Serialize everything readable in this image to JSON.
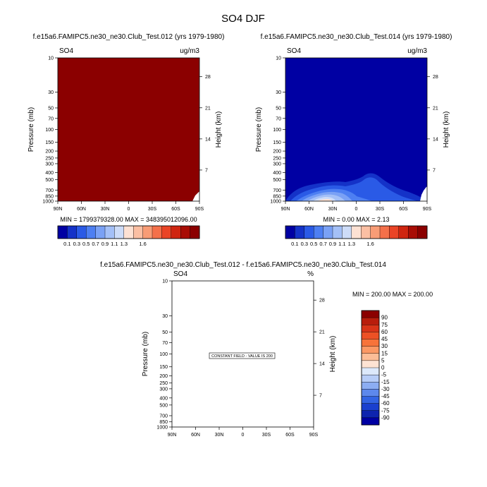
{
  "page_title": "SO4 DJF",
  "colors": {
    "dark_red": "#8b0000",
    "dark_blue": "#0000a3",
    "cool_scale": [
      "#0000a3",
      "#1432c8",
      "#2a5ae6",
      "#4d7ff2",
      "#7aa1f5",
      "#a4c0f7",
      "#cddcf8"
    ],
    "warm_scale": [
      "#fde1d3",
      "#fbbfa3",
      "#f89c76",
      "#f4704a",
      "#ea4426",
      "#cf2510",
      "#a80d05",
      "#8b0000"
    ]
  },
  "chart_data": [
    {
      "id": "panel1",
      "type": "heatmap",
      "title": "f.e15a6.FAMIPC5.ne30_ne30.Club_Test.012 (yrs 1979-1980)",
      "variable": "SO4",
      "units": "ug/m3",
      "ylabel": "Pressure (mb)",
      "y2label": "Height (km)",
      "x_ticks": [
        "90N",
        "60N",
        "30N",
        "0",
        "30S",
        "60S",
        "90S"
      ],
      "y_ticks": [
        "10",
        "30",
        "50",
        "70",
        "100",
        "150",
        "200",
        "250",
        "300",
        "400",
        "500",
        "700",
        "850",
        "1000"
      ],
      "height_ticks": [
        "28",
        "21",
        "14",
        "7"
      ],
      "ylim": [
        1000,
        10
      ],
      "stats": "MIN = 1799379328.00   MAX = 348395012096.00",
      "field": "saturated maximum"
    },
    {
      "id": "panel2",
      "type": "heatmap",
      "title": "f.e15a6.FAMIPC5.ne30_ne30.Club_Test.014 (yrs 1979-1980)",
      "variable": "SO4",
      "units": "ug/m3",
      "ylabel": "Pressure (mb)",
      "y2label": "Height (km)",
      "x_ticks": [
        "90N",
        "60N",
        "30N",
        "0",
        "30S",
        "60S",
        "90S"
      ],
      "y_ticks": [
        "10",
        "30",
        "50",
        "70",
        "100",
        "150",
        "200",
        "250",
        "300",
        "400",
        "500",
        "700",
        "850",
        "1000"
      ],
      "height_ticks": [
        "28",
        "21",
        "14",
        "7"
      ],
      "ylim": [
        1000,
        10
      ],
      "stats": "MIN =   0.00  MAX =   2.13",
      "min": 0.0,
      "max": 2.13
    },
    {
      "id": "colorbar1",
      "type": "colorbar",
      "labels": [
        "0.1",
        "0.3",
        "0.5",
        "0.7",
        "0.9",
        "1.1",
        "1.3",
        "1.6"
      ]
    },
    {
      "id": "colorbar2",
      "type": "colorbar",
      "labels": [
        "0.1",
        "0.3",
        "0.5",
        "0.7",
        "0.9",
        "1.1",
        "1.3",
        "1.6"
      ]
    },
    {
      "id": "panel3",
      "type": "heatmap",
      "title": "f.e15a6.FAMIPC5.ne30_ne30.Club_Test.012 - f.e15a6.FAMIPC5.ne30_ne30.Club_Test.014",
      "variable": "SO4",
      "units": "%",
      "ylabel": "Pressure (mb)",
      "y2label": "Height (km)",
      "x_ticks": [
        "90N",
        "60N",
        "30N",
        "0",
        "30S",
        "60S",
        "90S"
      ],
      "y_ticks": [
        "10",
        "30",
        "50",
        "70",
        "100",
        "150",
        "200",
        "250",
        "300",
        "400",
        "500",
        "700",
        "850",
        "1000"
      ],
      "height_ticks": [
        "28",
        "21",
        "14",
        "7"
      ],
      "ylim": [
        1000,
        10
      ],
      "stats": "MIN = 200.00  MAX = 200.00",
      "annotation": "CONSTANT FIELD - VALUE IS 200"
    },
    {
      "id": "colorbar3",
      "type": "colorbar",
      "labels": [
        "90",
        "75",
        "60",
        "45",
        "30",
        "15",
        "5",
        "0",
        "-5",
        "-15",
        "-30",
        "-45",
        "-60",
        "-75",
        "-90"
      ]
    }
  ]
}
